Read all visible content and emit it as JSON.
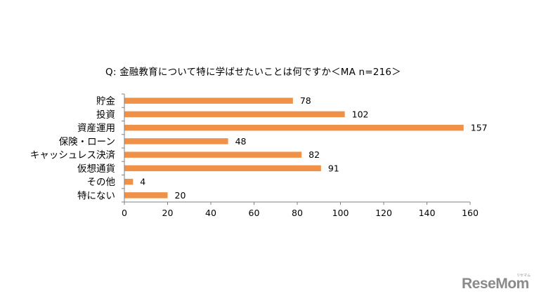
{
  "chart_data": {
    "type": "bar",
    "orientation": "horizontal",
    "title": "Q:  金融教育について特に学ばせたいことは何ですか＜MA n=216＞",
    "categories": [
      "貯金",
      "投資",
      "資産運用",
      "保険・ローン",
      "キャッシュレス決済",
      "仮想通貨",
      "その他",
      "特にない"
    ],
    "values": [
      78,
      102,
      157,
      48,
      82,
      91,
      4,
      20
    ],
    "xlim": [
      0,
      160
    ],
    "xticks": [
      0,
      20,
      40,
      60,
      80,
      100,
      120,
      140,
      160
    ],
    "bar_color": "#F0914A",
    "grid": false,
    "legend": "none"
  },
  "watermark": {
    "text": "ReseMom",
    "kana": "リセマム"
  }
}
